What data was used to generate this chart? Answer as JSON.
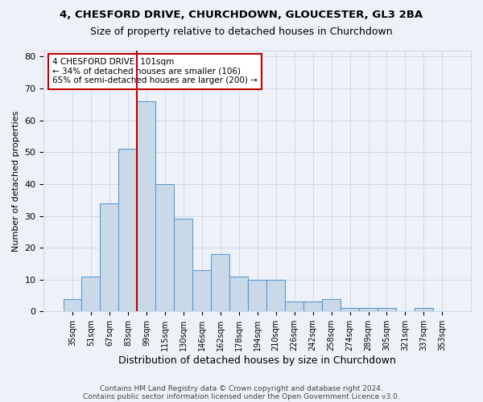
{
  "title_line1": "4, CHESFORD DRIVE, CHURCHDOWN, GLOUCESTER, GL3 2BA",
  "title_line2": "Size of property relative to detached houses in Churchdown",
  "xlabel": "Distribution of detached houses by size in Churchdown",
  "ylabel": "Number of detached properties",
  "bins": [
    "35sqm",
    "51sqm",
    "67sqm",
    "83sqm",
    "99sqm",
    "115sqm",
    "130sqm",
    "146sqm",
    "162sqm",
    "178sqm",
    "194sqm",
    "210sqm",
    "226sqm",
    "242sqm",
    "258sqm",
    "274sqm",
    "289sqm",
    "305sqm",
    "321sqm",
    "337sqm",
    "353sqm"
  ],
  "values": [
    4,
    11,
    34,
    51,
    66,
    40,
    29,
    13,
    18,
    11,
    10,
    10,
    3,
    3,
    4,
    1,
    1,
    1,
    0,
    1,
    0
  ],
  "bar_color": "#c9d9e8",
  "bar_edge_color": "#5b9bd5",
  "highlight_bin_index": 4,
  "highlight_color": "#c00000",
  "annotation_text": "4 CHESFORD DRIVE: 101sqm\n← 34% of detached houses are smaller (106)\n65% of semi-detached houses are larger (200) →",
  "annotation_box_color": "#ffffff",
  "annotation_box_edge": "#c00000",
  "ylim": [
    0,
    82
  ],
  "yticks": [
    0,
    10,
    20,
    30,
    40,
    50,
    60,
    70,
    80
  ],
  "grid_color": "#d0d8e8",
  "background_color": "#eef2f8",
  "footer_line1": "Contains HM Land Registry data © Crown copyright and database right 2024.",
  "footer_line2": "Contains public sector information licensed under the Open Government Licence v3.0."
}
